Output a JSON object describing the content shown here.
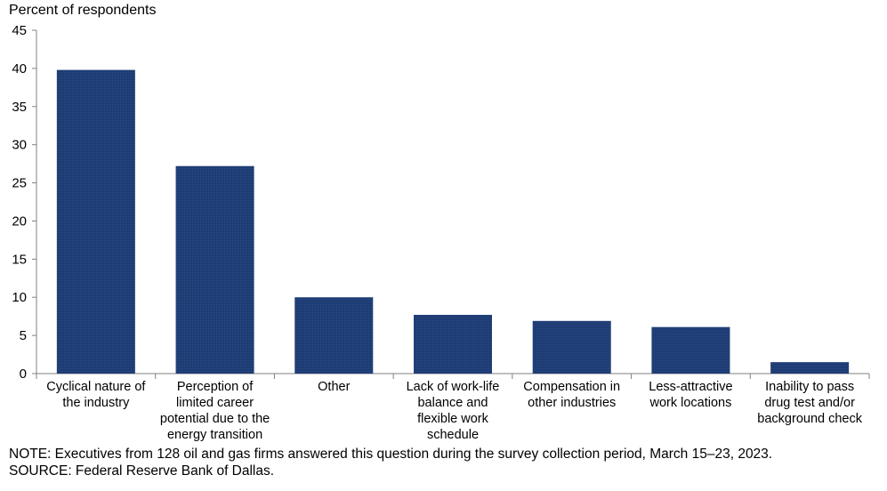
{
  "chart_data": {
    "type": "bar",
    "ylabel": "Percent of respondents",
    "ylim": [
      0,
      45
    ],
    "yticks": [
      0,
      5,
      10,
      15,
      20,
      25,
      30,
      35,
      40,
      45
    ],
    "categories": [
      "Cyclical nature of\nthe industry",
      "Perception of\nlimited career\npotential due to the\nenergy transition",
      "Other",
      "Lack of work-life\nbalance and\nflexible work\nschedule",
      "Compensation in\nother industries",
      "Less-attractive\nwork locations",
      "Inability to pass\ndrug test and/or\nbackground check"
    ],
    "values": [
      39.8,
      27.2,
      10.0,
      7.7,
      6.9,
      6.1,
      1.5
    ],
    "grid": false,
    "bar_color": "#1f3d75"
  },
  "notes": {
    "note": "NOTE:  Executives  from 128 oil and gas firms answered this question during the survey collection period, March 15–23, 2023.",
    "source": "SOURCE:  Federal Reserve Bank of Dallas."
  }
}
